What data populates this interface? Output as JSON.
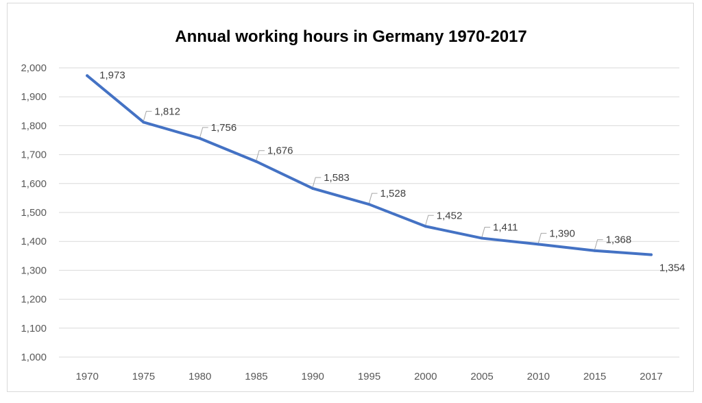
{
  "chart_data": {
    "type": "line",
    "title": "Annual working hours in Germany 1970-2017",
    "xlabel": "",
    "ylabel": "",
    "categories": [
      "1970",
      "1975",
      "1980",
      "1985",
      "1990",
      "1995",
      "2000",
      "2005",
      "2010",
      "2015",
      "2017"
    ],
    "series": [
      {
        "name": "Annual working hours",
        "values": [
          1973,
          1812,
          1756,
          1676,
          1583,
          1528,
          1452,
          1411,
          1390,
          1368,
          1354
        ],
        "color": "#4472c4"
      }
    ],
    "data_labels": [
      "1,973",
      "1,812",
      "1,756",
      "1,676",
      "1,583",
      "1,528",
      "1,452",
      "1,411",
      "1,390",
      "1,368",
      "1,354"
    ],
    "ylim": [
      1000,
      2000
    ],
    "yticks": [
      "1,000",
      "1,100",
      "1,200",
      "1,300",
      "1,400",
      "1,500",
      "1,600",
      "1,700",
      "1,800",
      "1,900",
      "2,000"
    ],
    "grid": true,
    "legend": "none"
  }
}
